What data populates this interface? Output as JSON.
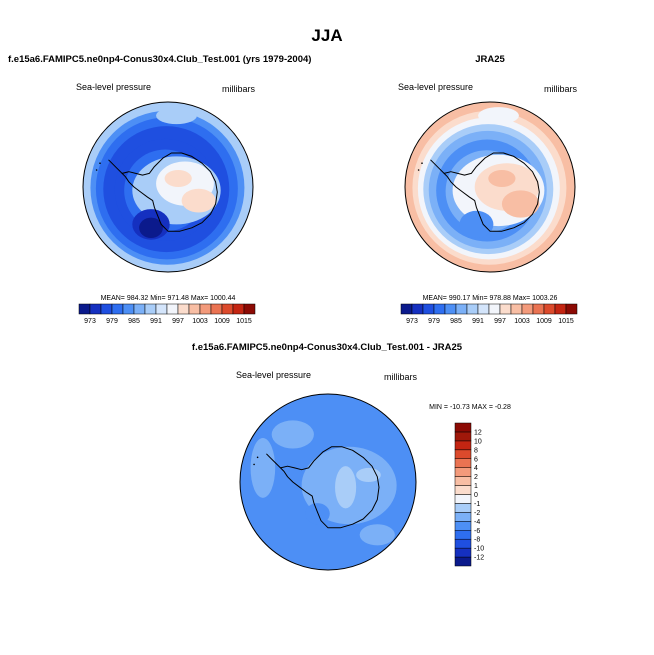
{
  "figure": {
    "title": "JJA",
    "field_label": "Sea-level pressure",
    "units_label": "millibars"
  },
  "chart_data": [
    {
      "type": "heatmap",
      "projection": "south-polar-stereographic",
      "title": "f.e15a6.FAMIPC5.ne0np4-Conus30x4.Club_Test.001 (yrs 1979-2004)",
      "left_label": "Sea-level pressure",
      "right_label": "millibars",
      "stats": "MEAN= 984.32   Min= 971.48   Max= 1000.44",
      "mean": 984.32,
      "min": 971.48,
      "max": 1000.44,
      "levels": [
        973,
        976,
        979,
        982,
        985,
        988,
        991,
        994,
        997,
        1000,
        1003,
        1006,
        1009,
        1012,
        1015
      ],
      "tick_labels": [
        "973",
        "979",
        "985",
        "991",
        "997",
        "1003",
        "1009",
        "1015"
      ],
      "colors": [
        "#0b1a8c",
        "#1530c0",
        "#1f4fe0",
        "#2e6ef0",
        "#4d8ff5",
        "#7bb0f7",
        "#a9cdf8",
        "#d4e5fb",
        "#f2f5fb",
        "#fbdccc",
        "#f8bea4",
        "#f39a7b",
        "#ea7352",
        "#dc4a2c",
        "#c42512",
        "#8c0a04"
      ],
      "rings_outer_to_inner": [
        {
          "value": 990,
          "width": 8
        },
        {
          "value": 984,
          "width": 6
        },
        {
          "value": 980,
          "width": 8
        },
        {
          "value": 976,
          "width": 12
        },
        {
          "value": 978,
          "width": 10
        },
        {
          "value": 981,
          "width": 10
        }
      ],
      "cap_value": 986,
      "blobs": [
        {
          "value": 990,
          "cx": 0.55,
          "cy": 0.52,
          "rx": 0.26,
          "ry": 0.2
        },
        {
          "value": 995,
          "cx": 0.6,
          "cy": 0.48,
          "rx": 0.17,
          "ry": 0.13
        },
        {
          "value": 998,
          "cx": 0.68,
          "cy": 0.58,
          "rx": 0.1,
          "ry": 0.07
        },
        {
          "value": 998,
          "cx": 0.56,
          "cy": 0.45,
          "rx": 0.08,
          "ry": 0.05
        },
        {
          "value": 990,
          "cx": 0.55,
          "cy": 0.08,
          "rx": 0.12,
          "ry": 0.05
        },
        {
          "value": 975,
          "cx": 0.4,
          "cy": 0.72,
          "rx": 0.11,
          "ry": 0.09
        },
        {
          "value": 972,
          "cx": 0.4,
          "cy": 0.74,
          "rx": 0.07,
          "ry": 0.06
        }
      ]
    },
    {
      "type": "heatmap",
      "projection": "south-polar-stereographic",
      "title": "JRA25",
      "left_label": "Sea-level pressure",
      "right_label": "millibars",
      "stats": "MEAN= 990.17   Min= 978.88   Max= 1003.26",
      "mean": 990.17,
      "min": 978.88,
      "max": 1003.26,
      "levels": [
        973,
        976,
        979,
        982,
        985,
        988,
        991,
        994,
        997,
        1000,
        1003,
        1006,
        1009,
        1012,
        1015
      ],
      "tick_labels": [
        "973",
        "979",
        "985",
        "991",
        "997",
        "1003",
        "1009",
        "1015"
      ],
      "colors": [
        "#0b1a8c",
        "#1530c0",
        "#1f4fe0",
        "#2e6ef0",
        "#4d8ff5",
        "#7bb0f7",
        "#a9cdf8",
        "#d4e5fb",
        "#f2f5fb",
        "#fbdccc",
        "#f8bea4",
        "#f39a7b",
        "#ea7352",
        "#dc4a2c",
        "#c42512",
        "#8c0a04"
      ],
      "rings_outer_to_inner": [
        {
          "value": 1001,
          "width": 8
        },
        {
          "value": 998,
          "width": 6
        },
        {
          "value": 994,
          "width": 6
        },
        {
          "value": 990,
          "width": 6
        },
        {
          "value": 986,
          "width": 8
        },
        {
          "value": 983,
          "width": 10
        },
        {
          "value": 985,
          "width": 10
        }
      ],
      "cap_value": 990,
      "blobs": [
        {
          "value": 995,
          "cx": 0.55,
          "cy": 0.52,
          "rx": 0.27,
          "ry": 0.21
        },
        {
          "value": 998,
          "cx": 0.6,
          "cy": 0.5,
          "rx": 0.19,
          "ry": 0.14
        },
        {
          "value": 1001,
          "cx": 0.68,
          "cy": 0.6,
          "rx": 0.11,
          "ry": 0.08
        },
        {
          "value": 1001,
          "cx": 0.57,
          "cy": 0.45,
          "rx": 0.08,
          "ry": 0.05
        },
        {
          "value": 994,
          "cx": 0.55,
          "cy": 0.08,
          "rx": 0.12,
          "ry": 0.05
        },
        {
          "value": 984,
          "cx": 0.42,
          "cy": 0.72,
          "rx": 0.1,
          "ry": 0.08
        }
      ]
    },
    {
      "type": "heatmap",
      "projection": "south-polar-stereographic",
      "title": "f.e15a6.FAMIPC5.ne0np4-Conus30x4.Club_Test.001 - JRA25",
      "left_label": "Sea-level pressure",
      "right_label": "millibars",
      "stats": "MIN = -10.73  MAX = -0.28",
      "min": -10.73,
      "max": -0.28,
      "levels": [
        -12,
        -10,
        -8,
        -6,
        -4,
        -2,
        -1,
        0,
        1,
        2,
        4,
        6,
        8,
        10,
        12
      ],
      "tick_labels": [
        "-12",
        "-10",
        "-8",
        "-6",
        "-4",
        "-2",
        "-1",
        "0",
        "1",
        "2",
        "4",
        "6",
        "8",
        "10",
        "12"
      ],
      "colors": [
        "#0b1a8c",
        "#1530c0",
        "#1f4fe0",
        "#2e6ef0",
        "#4d8ff5",
        "#7bb0f7",
        "#a9cdf8",
        "#f2f5fb",
        "#fbdccc",
        "#f8bea4",
        "#f39a7b",
        "#ea7352",
        "#dc4a2c",
        "#c42512",
        "#a0180a",
        "#8c0a04"
      ],
      "rings_outer_to_inner": [],
      "cap_value": -5,
      "blobs": [
        {
          "value": -3,
          "cx": 0.3,
          "cy": 0.23,
          "rx": 0.12,
          "ry": 0.08
        },
        {
          "value": -3,
          "cx": 0.62,
          "cy": 0.52,
          "rx": 0.27,
          "ry": 0.22
        },
        {
          "value": -3,
          "cx": 0.13,
          "cy": 0.42,
          "rx": 0.07,
          "ry": 0.17
        },
        {
          "value": -3,
          "cx": 0.78,
          "cy": 0.8,
          "rx": 0.1,
          "ry": 0.06
        },
        {
          "value": -1.5,
          "cx": 0.6,
          "cy": 0.53,
          "rx": 0.06,
          "ry": 0.12
        },
        {
          "value": -1.5,
          "cx": 0.73,
          "cy": 0.46,
          "rx": 0.07,
          "ry": 0.04
        },
        {
          "value": -6,
          "cx": 0.44,
          "cy": 0.68,
          "rx": 0.07,
          "ry": 0.06
        }
      ]
    }
  ]
}
